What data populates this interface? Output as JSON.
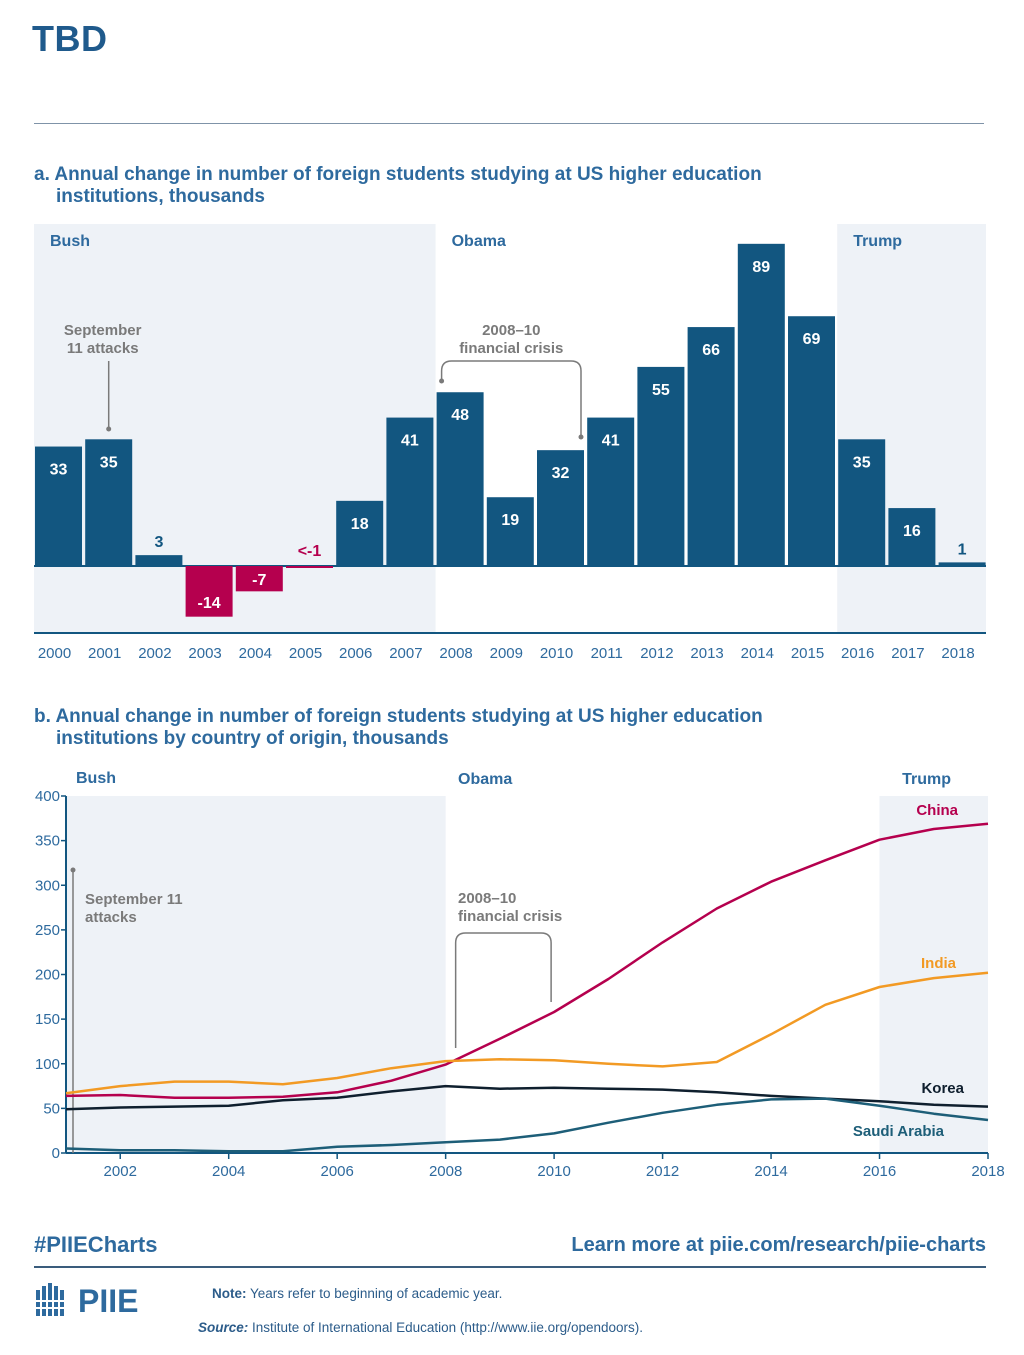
{
  "page": {
    "title": "TBD"
  },
  "chart_a_title_line1": "a. Annual change in number of foreign students studying at US higher education",
  "chart_a_title_line2": "institutions, thousands",
  "chart_b_title_line1": "b. Annual change in number of foreign students studying at US higher education",
  "chart_b_title_line2": "institutions by country of origin, thousands",
  "chart_data": [
    {
      "type": "bar",
      "title": "a. Annual change in number of foreign students studying at US higher education institutions, thousands",
      "categories": [
        "2000",
        "2001",
        "2002",
        "2003",
        "2004",
        "2005",
        "2006",
        "2007",
        "2008",
        "2009",
        "2010",
        "2011",
        "2012",
        "2013",
        "2014",
        "2015",
        "2016",
        "2017",
        "2018"
      ],
      "values": [
        33,
        35,
        3,
        -14,
        -7,
        -0.5,
        18,
        41,
        48,
        19,
        32,
        41,
        55,
        66,
        89,
        69,
        35,
        16,
        1
      ],
      "labels": [
        "33",
        "35",
        "3",
        "-14",
        "-7",
        "<-1",
        "18",
        "41",
        "48",
        "19",
        "32",
        "41",
        "55",
        "66",
        "89",
        "69",
        "35",
        "16",
        "1"
      ],
      "ylim": [
        -14,
        89
      ],
      "colors": {
        "positive": "#125680",
        "negative": "#b5004e"
      },
      "eras": [
        {
          "name": "Bush",
          "from": "2000",
          "to": "2007",
          "shaded": true
        },
        {
          "name": "Obama",
          "from": "2008",
          "to": "2015",
          "shaded": false
        },
        {
          "name": "Trump",
          "from": "2016",
          "to": "2018",
          "shaded": true
        }
      ],
      "annotations": [
        {
          "text_lines": [
            "September",
            "11 attacks"
          ],
          "at": "2001"
        },
        {
          "text_lines": [
            "2008–10",
            "financial crisis"
          ],
          "from": "2008",
          "to": "2010"
        }
      ]
    },
    {
      "type": "line",
      "title": "b. Annual change in number of foreign students studying at US higher education institutions by country of origin, thousands",
      "x": [
        2001,
        2002,
        2003,
        2004,
        2005,
        2006,
        2007,
        2008,
        2009,
        2010,
        2011,
        2012,
        2013,
        2014,
        2015,
        2016,
        2017,
        2018
      ],
      "xticks": [
        "2002",
        "2004",
        "2006",
        "2008",
        "2010",
        "2012",
        "2014",
        "2016",
        "2018"
      ],
      "yticks": [
        "0",
        "50",
        "100",
        "150",
        "200",
        "250",
        "300",
        "350",
        "400"
      ],
      "xlim": [
        2001,
        2018
      ],
      "ylim": [
        0,
        400
      ],
      "series": [
        {
          "name": "China",
          "color": "#b5004e",
          "values": [
            64,
            65,
            62,
            62,
            63,
            68,
            81,
            99,
            128,
            158,
            195,
            236,
            274,
            304,
            328,
            351,
            363,
            369
          ]
        },
        {
          "name": "India",
          "color": "#f29a24",
          "values": [
            67,
            75,
            80,
            80,
            77,
            84,
            95,
            103,
            105,
            104,
            100,
            97,
            102,
            133,
            166,
            186,
            196,
            202
          ]
        },
        {
          "name": "Korea",
          "color": "#0f1f2e",
          "values": [
            49,
            51,
            52,
            53,
            59,
            62,
            69,
            75,
            72,
            73,
            72,
            71,
            68,
            64,
            61,
            58,
            54,
            52
          ]
        },
        {
          "name": "Saudi Arabia",
          "color": "#1d5e78",
          "values": [
            5,
            3,
            3,
            2,
            2,
            7,
            9,
            12,
            15,
            22,
            34,
            45,
            54,
            60,
            61,
            53,
            44,
            37
          ]
        }
      ],
      "eras": [
        {
          "name": "Bush",
          "from": 2001,
          "to": 2008,
          "shaded": true
        },
        {
          "name": "Obama",
          "from": 2008,
          "to": 2016,
          "shaded": false
        },
        {
          "name": "Trump",
          "from": 2016,
          "to": 2018,
          "shaded": true
        }
      ],
      "annotations": [
        {
          "text_lines": [
            "September 11",
            "attacks"
          ],
          "at": 2001
        },
        {
          "text_lines": [
            "2008–10",
            "financial crisis"
          ],
          "from": 2008,
          "to": 2010
        }
      ]
    }
  ],
  "footer": {
    "hashtag": "#PIIECharts",
    "link": "Learn more at piie.com/research/piie-charts",
    "logo_text": "PIIE",
    "note_label": "Note:",
    "note_text": " Years refer to beginning of academic year.",
    "source_label": "Source:",
    "source_text": " Institute of International Education (http://www.iie.org/opendoors)."
  }
}
